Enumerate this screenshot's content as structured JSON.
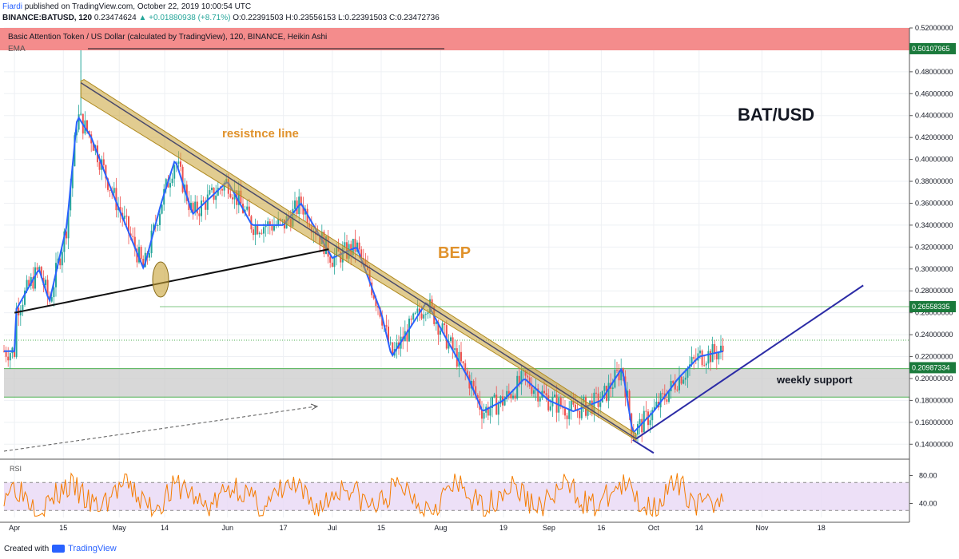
{
  "header": {
    "author": "Fiardi",
    "published": "published on TradingView.com, October 22, 2019 10:00:54 UTC",
    "symbol": "BINANCE:BATUSD, 120",
    "price": "0.23474624",
    "change": "▲ +0.01880938 (+8.71%)",
    "ohlc": "O:0.22391503 H:0.23556153 L:0.22391503 C:0.23472736"
  },
  "banner": {
    "title": "Basic Attention Token / US Dollar (calculated by TradingView), 120, BINANCE, Heikin Ashi",
    "indicator": "EMA"
  },
  "annotations": {
    "pair": "BAT/USD",
    "resistance": "resistnce line",
    "bep": "BEP",
    "support": "weekly support"
  },
  "rsi_label": "RSI",
  "footer": {
    "created": "Created with",
    "brand": "TradingView"
  },
  "colors": {
    "up": "#26a69a",
    "down": "#ef5350",
    "ema": "#2962ff",
    "rsi": "#f57c00",
    "resistance_band": "#c8a234",
    "banner": "#f48c8c",
    "support_band": "#c8c8c8",
    "trend_blue": "#2c2ca6",
    "label_green": "#1b7a3c"
  },
  "chart_data": {
    "type": "candlestick",
    "title": "Basic Attention Token / US Dollar (calculated by TradingView), 120, BINANCE, Heikin Ashi",
    "ylim": [
      0.13,
      0.52
    ],
    "y_ticks": [
      0.52,
      0.5,
      0.48,
      0.46,
      0.44,
      0.42,
      0.4,
      0.38,
      0.36,
      0.34,
      0.32,
      0.3,
      0.28,
      0.26,
      0.24,
      0.22,
      0.2,
      0.18,
      0.16,
      0.14
    ],
    "x_ticks": [
      "Apr",
      "15",
      "May",
      "14",
      "Jun",
      "17",
      "Jul",
      "15",
      "Aug",
      "19",
      "Sep",
      "16",
      "Oct",
      "14",
      "Nov",
      "18"
    ],
    "price_labels": [
      {
        "value": 0.50107965,
        "text": "0.50107965",
        "color": "#1b7a3c"
      },
      {
        "value": 0.26558335,
        "text": "0.26558335",
        "color": "#1b7a3c"
      },
      {
        "value": 0.20987334,
        "text": "0.20987334",
        "color": "#1b7a3c"
      }
    ],
    "price_path": [
      {
        "date": "2019-04-01",
        "price": 0.26
      },
      {
        "date": "2019-04-08",
        "price": 0.3
      },
      {
        "date": "2019-04-11",
        "price": 0.27
      },
      {
        "date": "2019-04-16",
        "price": 0.34
      },
      {
        "date": "2019-04-19",
        "price": 0.44
      },
      {
        "date": "2019-04-23",
        "price": 0.42
      },
      {
        "date": "2019-04-29",
        "price": 0.37
      },
      {
        "date": "2019-05-08",
        "price": 0.3
      },
      {
        "date": "2019-05-13",
        "price": 0.36
      },
      {
        "date": "2019-05-17",
        "price": 0.4
      },
      {
        "date": "2019-05-22",
        "price": 0.35
      },
      {
        "date": "2019-06-01",
        "price": 0.38
      },
      {
        "date": "2019-06-08",
        "price": 0.34
      },
      {
        "date": "2019-06-17",
        "price": 0.34
      },
      {
        "date": "2019-06-22",
        "price": 0.36
      },
      {
        "date": "2019-07-01",
        "price": 0.31
      },
      {
        "date": "2019-07-08",
        "price": 0.32
      },
      {
        "date": "2019-07-15",
        "price": 0.26
      },
      {
        "date": "2019-07-18",
        "price": 0.22
      },
      {
        "date": "2019-07-22",
        "price": 0.24
      },
      {
        "date": "2019-07-28",
        "price": 0.27
      },
      {
        "date": "2019-08-02",
        "price": 0.24
      },
      {
        "date": "2019-08-09",
        "price": 0.2
      },
      {
        "date": "2019-08-13",
        "price": 0.17
      },
      {
        "date": "2019-08-19",
        "price": 0.18
      },
      {
        "date": "2019-08-25",
        "price": 0.2
      },
      {
        "date": "2019-09-01",
        "price": 0.18
      },
      {
        "date": "2019-09-08",
        "price": 0.17
      },
      {
        "date": "2019-09-16",
        "price": 0.18
      },
      {
        "date": "2019-09-22",
        "price": 0.21
      },
      {
        "date": "2019-09-25",
        "price": 0.15
      },
      {
        "date": "2019-10-01",
        "price": 0.17
      },
      {
        "date": "2019-10-08",
        "price": 0.2
      },
      {
        "date": "2019-10-14",
        "price": 0.22
      },
      {
        "date": "2019-10-21",
        "price": 0.225
      }
    ],
    "lines": {
      "resistance": [
        {
          "date": "2019-04-20",
          "price": 0.47
        },
        {
          "date": "2019-09-26",
          "price": 0.145
        }
      ],
      "ascending_support": [
        {
          "date": "2019-04-01",
          "price": 0.26
        },
        {
          "date": "2019-06-30",
          "price": 0.318
        }
      ],
      "weekly_trend": [
        {
          "date": "2019-09-26",
          "price": 0.145
        },
        {
          "date": "2019-11-30",
          "price": 0.285
        }
      ],
      "weekly_trend_lower": [
        {
          "date": "2019-09-25",
          "price": 0.144
        },
        {
          "date": "2019-10-01",
          "price": 0.132
        }
      ]
    },
    "support_zone": [
      0.183,
      0.209
    ],
    "rsi": {
      "ylim": [
        20,
        100
      ],
      "ticks": [
        80,
        40
      ],
      "band": [
        30,
        70
      ]
    }
  }
}
